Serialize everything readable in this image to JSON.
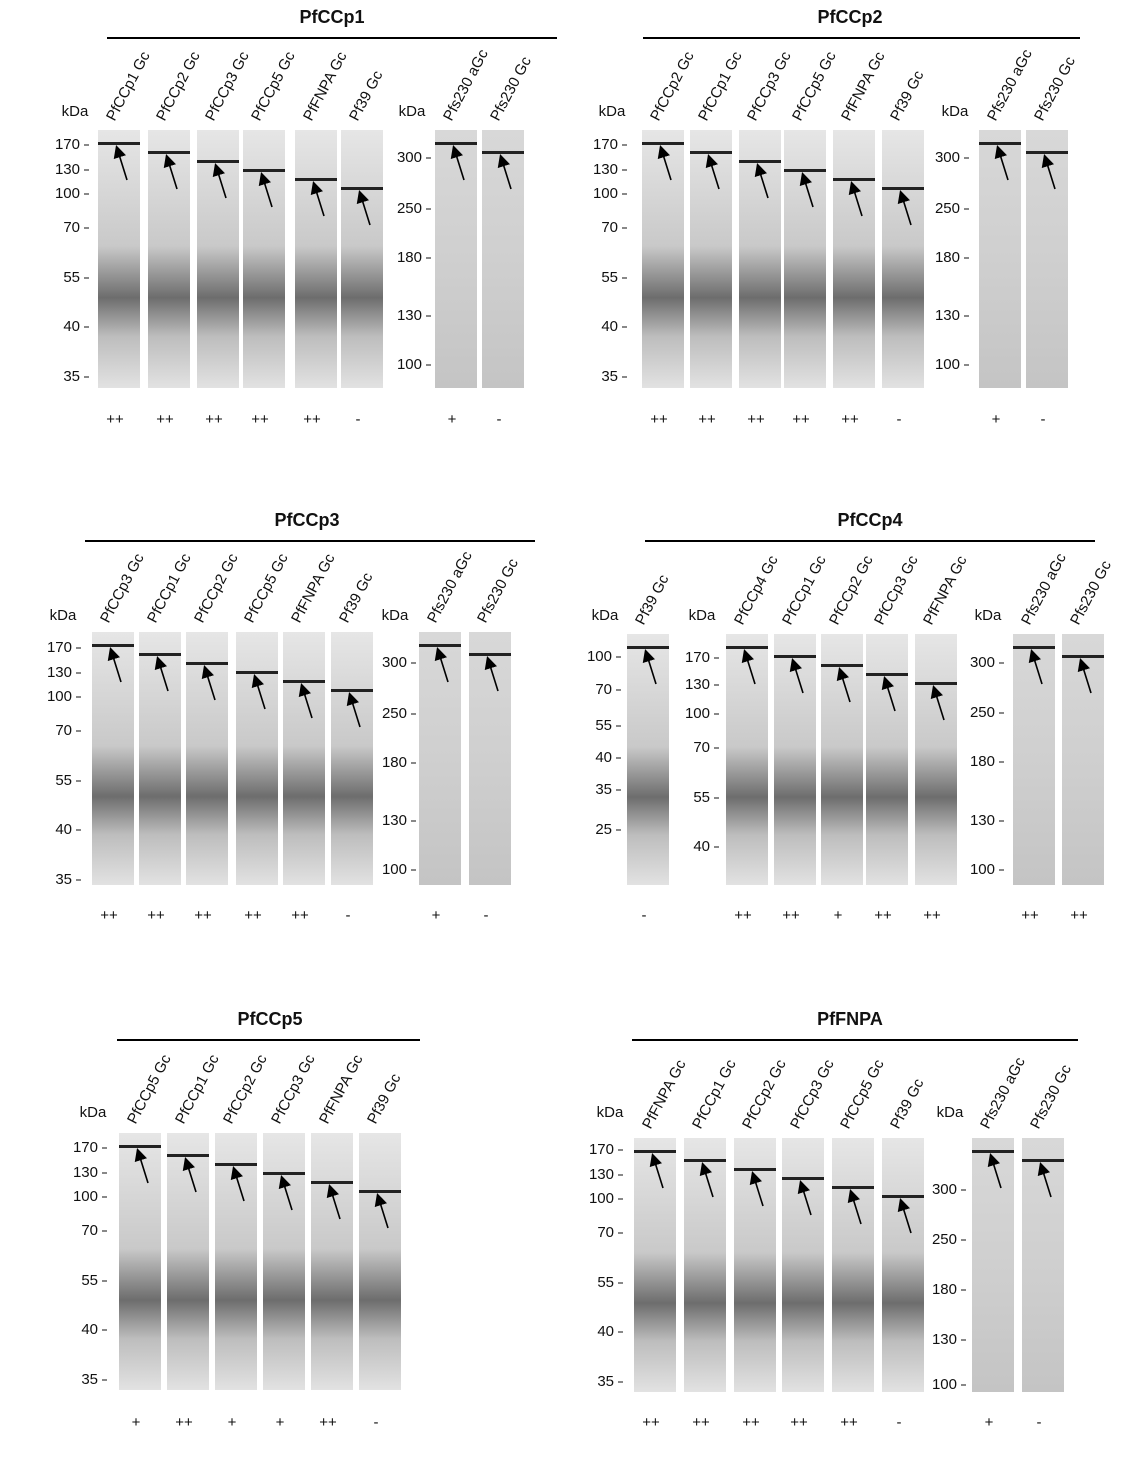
{
  "panels": [
    {
      "title": "PfCCp1",
      "gels": [
        {
          "unit": "kDa",
          "markers": [
            170,
            130,
            100,
            70,
            55,
            40,
            35
          ],
          "lanes": [
            {
              "label": "PfCCp1 Gc",
              "score": "++"
            },
            {
              "label": "PfCCp2 Gc",
              "score": "++"
            },
            {
              "label": "PfCCp3 Gc",
              "score": "++"
            },
            {
              "label": "PfCCp5 Gc",
              "score": "++"
            },
            {
              "label": "PfFNPA Gc",
              "score": "++"
            },
            {
              "label": "Pf39 Gc",
              "score": "-"
            }
          ]
        },
        {
          "unit": "kDa",
          "markers": [
            300,
            250,
            180,
            130,
            100
          ],
          "lanes": [
            {
              "label": "Pfs230 aGc",
              "score": "+"
            },
            {
              "label": "Pfs230 Gc",
              "score": "-"
            }
          ]
        }
      ]
    },
    {
      "title": "PfCCp2",
      "gels": [
        {
          "unit": "kDa",
          "markers": [
            170,
            130,
            100,
            70,
            55,
            40,
            35
          ],
          "lanes": [
            {
              "label": "PfCCp2 Gc",
              "score": "++"
            },
            {
              "label": "PfCCp1 Gc",
              "score": "++"
            },
            {
              "label": "PfCCp3 Gc",
              "score": "++"
            },
            {
              "label": "PfCCp5 Gc",
              "score": "++"
            },
            {
              "label": "PfFNPA Gc",
              "score": "++"
            },
            {
              "label": "Pf39 Gc",
              "score": "-"
            }
          ]
        },
        {
          "unit": "kDa",
          "markers": [
            300,
            250,
            180,
            130,
            100
          ],
          "lanes": [
            {
              "label": "Pfs230 aGc",
              "score": "+"
            },
            {
              "label": "Pfs230 Gc",
              "score": "-"
            }
          ]
        }
      ]
    },
    {
      "title": "PfCCp3",
      "gels": [
        {
          "unit": "kDa",
          "markers": [
            170,
            130,
            100,
            70,
            55,
            40,
            35
          ],
          "lanes": [
            {
              "label": "PfCCp3 Gc",
              "score": "++"
            },
            {
              "label": "PfCCp1 Gc",
              "score": "++"
            },
            {
              "label": "PfCCp2 Gc",
              "score": "++"
            },
            {
              "label": "PfCCp5 Gc",
              "score": "++"
            },
            {
              "label": "PfFNPA Gc",
              "score": "++"
            },
            {
              "label": "Pf39 Gc",
              "score": "-"
            }
          ]
        },
        {
          "unit": "kDa",
          "markers": [
            300,
            250,
            180,
            130,
            100
          ],
          "lanes": [
            {
              "label": "Pfs230 aGc",
              "score": "+"
            },
            {
              "label": "Pfs230 Gc",
              "score": "-"
            }
          ]
        }
      ]
    },
    {
      "title": "PfCCp4",
      "gels": [
        {
          "unit": "kDa",
          "markers": [
            100,
            70,
            55,
            40,
            35,
            25
          ],
          "lanes": [
            {
              "label": "Pf39 Gc",
              "score": "-"
            }
          ]
        },
        {
          "unit": "kDa",
          "markers": [
            170,
            130,
            100,
            70,
            55,
            40
          ],
          "lanes": [
            {
              "label": "PfCCp4 Gc",
              "score": "++"
            },
            {
              "label": "PfCCp1 Gc",
              "score": "++"
            },
            {
              "label": "PfCCp2 Gc",
              "score": "+"
            },
            {
              "label": "PfCCp3 Gc",
              "score": "++"
            },
            {
              "label": "PfFNPA Gc",
              "score": "++"
            }
          ]
        },
        {
          "unit": "kDa",
          "markers": [
            300,
            250,
            180,
            130,
            100
          ],
          "lanes": [
            {
              "label": "Pfs230 aGc",
              "score": "++"
            },
            {
              "label": "Pfs230 Gc",
              "score": "++"
            }
          ]
        }
      ]
    },
    {
      "title": "PfCCp5",
      "gels": [
        {
          "unit": "kDa",
          "markers": [
            170,
            130,
            100,
            70,
            55,
            40,
            35
          ],
          "lanes": [
            {
              "label": "PfCCp5 Gc",
              "score": "+"
            },
            {
              "label": "PfCCp1 Gc",
              "score": "++"
            },
            {
              "label": "PfCCp2 Gc",
              "score": "+"
            },
            {
              "label": "PfCCp3 Gc",
              "score": "+"
            },
            {
              "label": "PfFNPA Gc",
              "score": "++"
            },
            {
              "label": "Pf39 Gc",
              "score": "-"
            }
          ]
        }
      ]
    },
    {
      "title": "PfFNPA",
      "gels": [
        {
          "unit": "kDa",
          "markers": [
            170,
            130,
            100,
            70,
            55,
            40,
            35
          ],
          "lanes": [
            {
              "label": "PfFNPA Gc",
              "score": "++"
            },
            {
              "label": "PfCCp1 Gc",
              "score": "++"
            },
            {
              "label": "PfCCp2 Gc",
              "score": "++"
            },
            {
              "label": "PfCCp3 Gc",
              "score": "++"
            },
            {
              "label": "PfCCp5 Gc",
              "score": "++"
            },
            {
              "label": "Pf39 Gc",
              "score": "-"
            }
          ]
        },
        {
          "unit": "kDa",
          "markers": [
            300,
            250,
            180,
            130,
            100
          ],
          "lanes": [
            {
              "label": "Pfs230 aGc",
              "score": "+"
            },
            {
              "label": "Pfs230 Gc",
              "score": "-"
            }
          ]
        }
      ]
    }
  ]
}
